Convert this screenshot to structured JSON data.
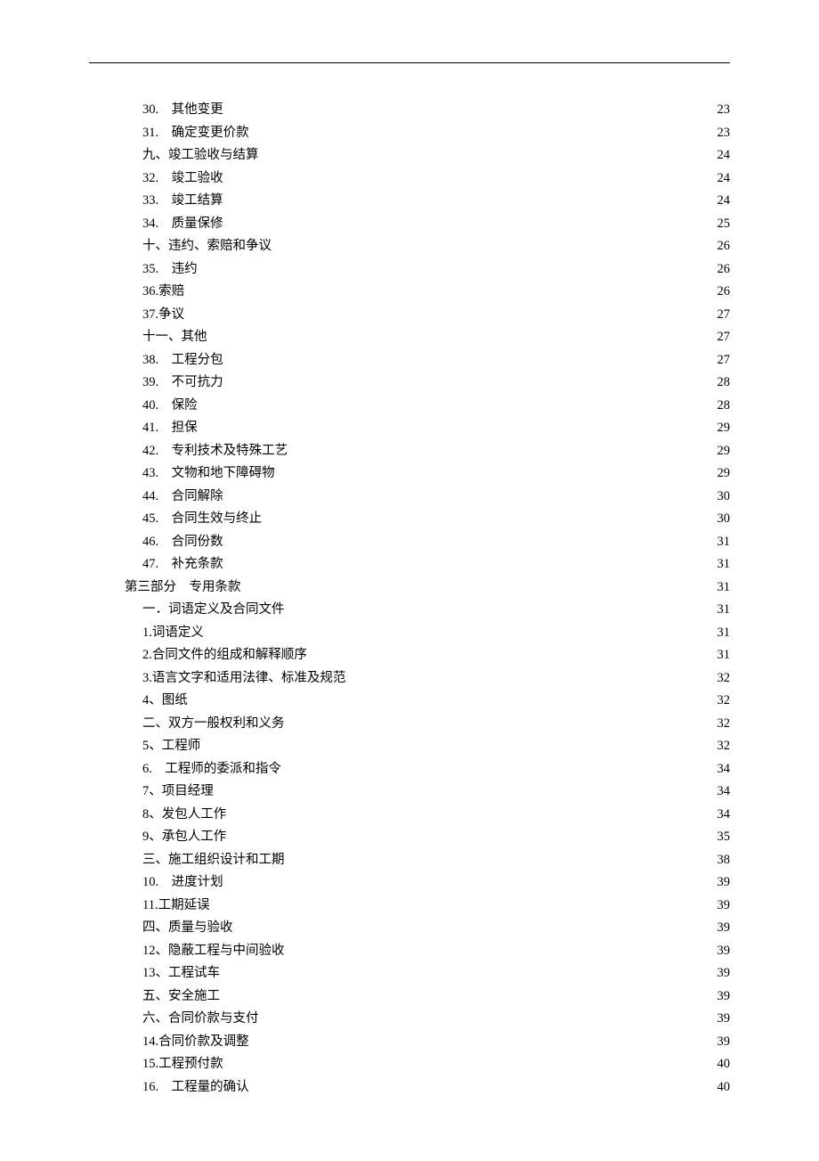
{
  "header_rule_color": "#000000",
  "entries": [
    {
      "indent": 2,
      "label": "30.　其他变更",
      "page": "23"
    },
    {
      "indent": 2,
      "label": "31.　确定变更价款",
      "page": "23"
    },
    {
      "indent": 2,
      "label": "九、竣工验收与结算",
      "page": "24"
    },
    {
      "indent": 2,
      "label": "32.　竣工验收",
      "page": "24"
    },
    {
      "indent": 2,
      "label": "33.　竣工结算",
      "page": "24"
    },
    {
      "indent": 2,
      "label": "34.　质量保修",
      "page": "25"
    },
    {
      "indent": 2,
      "label": "十、违约、索赔和争议",
      "page": "26"
    },
    {
      "indent": 2,
      "label": "35.　违约",
      "page": "26"
    },
    {
      "indent": 3,
      "label": "36.索赔",
      "page": "26"
    },
    {
      "indent": 3,
      "label": "37.争议",
      "page": "27"
    },
    {
      "indent": 2,
      "label": "十一、其他",
      "page": "27"
    },
    {
      "indent": 2,
      "label": "38.　工程分包",
      "page": "27"
    },
    {
      "indent": 2,
      "label": "39.　不可抗力",
      "page": "28"
    },
    {
      "indent": 2,
      "label": "40.　保险",
      "page": "28"
    },
    {
      "indent": 2,
      "label": "41.　担保",
      "page": "29"
    },
    {
      "indent": 2,
      "label": "42.　专利技术及特殊工艺",
      "page": "29"
    },
    {
      "indent": 2,
      "label": "43.　文物和地下障碍物",
      "page": "29"
    },
    {
      "indent": 2,
      "label": "44.　合同解除",
      "page": "30"
    },
    {
      "indent": 2,
      "label": "45.　合同生效与终止",
      "page": "30"
    },
    {
      "indent": 2,
      "label": "46.　合同份数",
      "page": "31"
    },
    {
      "indent": 2,
      "label": "47.　补充条款",
      "page": "31"
    },
    {
      "indent": 1,
      "label": "第三部分　专用条款",
      "page": "31"
    },
    {
      "indent": 3,
      "label": "一．词语定义及合同文件",
      "page": "31"
    },
    {
      "indent": 3,
      "label": "1.词语定义",
      "page": "31"
    },
    {
      "indent": 3,
      "label": "2.合同文件的组成和解释顺序",
      "page": "31"
    },
    {
      "indent": 3,
      "label": "3.语言文字和适用法律、标准及规范",
      "page": "32"
    },
    {
      "indent": 3,
      "label": "4、图纸",
      "page": "32"
    },
    {
      "indent": 3,
      "label": "二、双方一般权利和义务",
      "page": "32"
    },
    {
      "indent": 3,
      "label": "5、工程师",
      "page": "32"
    },
    {
      "indent": 3,
      "label": "6.　工程师的委派和指令",
      "page": "34"
    },
    {
      "indent": 3,
      "label": "7、项目经理",
      "page": "34"
    },
    {
      "indent": 3,
      "label": "8、发包人工作",
      "page": "34"
    },
    {
      "indent": 3,
      "label": "9、承包人工作",
      "page": "35"
    },
    {
      "indent": 3,
      "label": "三、施工组织设计和工期",
      "page": "38"
    },
    {
      "indent": 3,
      "label": "10.　进度计划",
      "page": "39"
    },
    {
      "indent": 3,
      "label": "11.工期延误",
      "page": "39"
    },
    {
      "indent": 3,
      "label": "四、质量与验收",
      "page": "39"
    },
    {
      "indent": 3,
      "label": "12、隐蔽工程与中间验收",
      "page": "39"
    },
    {
      "indent": 3,
      "label": "13、工程试车",
      "page": "39"
    },
    {
      "indent": 3,
      "label": "五、安全施工",
      "page": "39"
    },
    {
      "indent": 3,
      "label": "六、合同价款与支付",
      "page": "39"
    },
    {
      "indent": 3,
      "label": "14.合同价款及调整",
      "page": "39"
    },
    {
      "indent": 3,
      "label": "15.工程预付款",
      "page": "40"
    },
    {
      "indent": 3,
      "label": "16.　工程量的确认",
      "page": "40"
    }
  ]
}
